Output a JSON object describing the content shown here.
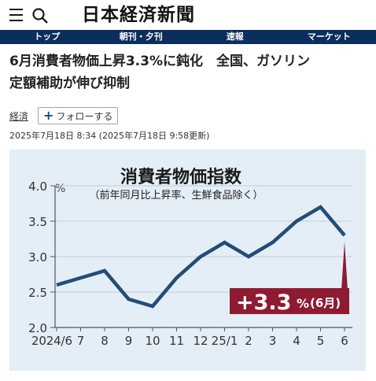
{
  "header": {
    "logo_text": "日本経済新聞",
    "nav": [
      "トップ",
      "朝刊・夕刊",
      "速報",
      "マーケット"
    ]
  },
  "article": {
    "headline_line1": "6月消費者物価上昇3.3%に鈍化　全国、ガソリン",
    "headline_line2": "定額補助が伸び抑制",
    "category": "経済",
    "follow_label": "フォローする",
    "timestamp": "2025年7月18日 8:34 (2025年7月18日 9:58更新)"
  },
  "colors": {
    "nav_bg": "#0a2f5c",
    "chart_bg": "#e4eef7",
    "line": "#244c78",
    "highlight": "#8e1b32"
  },
  "chart_data": {
    "type": "line",
    "title": "消費者物価指数",
    "subtitle": "（前年同月比上昇率、生鮮食品除く）",
    "ylabel": "%",
    "ylim": [
      2.0,
      4.0
    ],
    "yticks": [
      2.0,
      2.5,
      3.0,
      3.5,
      4.0
    ],
    "ytick_labels": [
      "2.0",
      "2.5",
      "3.0",
      "3.5",
      "4.0"
    ],
    "categories": [
      "2024/6",
      "7",
      "8",
      "9",
      "10",
      "11",
      "12",
      "25/1",
      "2",
      "3",
      "4",
      "5",
      "6"
    ],
    "values": [
      2.6,
      2.7,
      2.8,
      2.4,
      2.3,
      2.7,
      3.0,
      3.2,
      3.0,
      3.2,
      3.5,
      3.7,
      3.3
    ],
    "grid": true,
    "callout": {
      "main": "+3.3",
      "unit": "%",
      "note": "(6月)"
    }
  }
}
